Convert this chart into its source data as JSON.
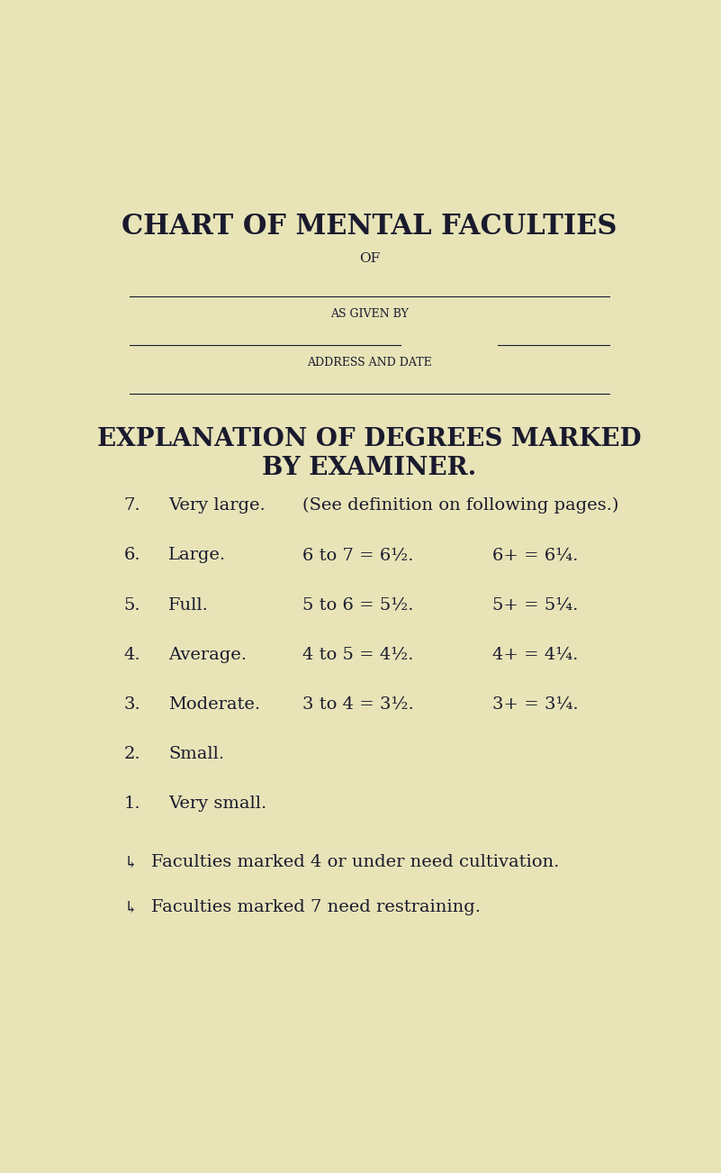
{
  "bg_color": "#e8e4b8",
  "text_color": "#1a1a2e",
  "title1": "CHART OF MENTAL FACULTIES",
  "title2": "OF",
  "label_as_given_by": "AS GIVEN BY",
  "label_address_date": "ADDRESS AND DATE",
  "section_title1": "EXPLANATION OF DEGREES MARKED",
  "section_title2": "BY EXAMINER.",
  "rows": [
    {
      "num": "7.",
      "label": "Very large.",
      "mid": "(See definition on following pages.)",
      "right": ""
    },
    {
      "num": "6.",
      "label": "Large.",
      "mid": "6 to 7 = 6½.",
      "right": "6+ = 6¼."
    },
    {
      "num": "5.",
      "label": "Full.",
      "mid": "5 to 6 = 5½.",
      "right": "5+ = 5¼."
    },
    {
      "num": "4.",
      "label": "Average.",
      "mid": "4 to 5 = 4½.",
      "right": "4+ = 4¼."
    },
    {
      "num": "3.",
      "label": "Moderate.",
      "mid": "3 to 4 = 3½.",
      "right": "3+ = 3¼."
    },
    {
      "num": "2.",
      "label": "Small.",
      "mid": "",
      "right": ""
    },
    {
      "num": "1.",
      "label": "Very small.",
      "mid": "",
      "right": ""
    }
  ],
  "note1": "Faculties marked 4 or under need cultivation.",
  "note2": "Faculties marked 7 need restraining."
}
